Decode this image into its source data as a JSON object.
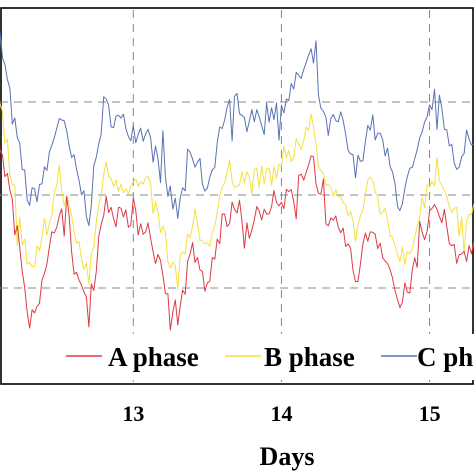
{
  "chart_data": {
    "type": "line",
    "title": "",
    "xlabel": "Days",
    "ylabel": "",
    "x_ticks": [
      13,
      14,
      15
    ],
    "xlim": [
      12.1,
      15.3
    ],
    "ylim": [
      0,
      100
    ],
    "grid": true,
    "grid_style": "dashed",
    "legend_placement": "bottom",
    "series": [
      {
        "name": "A phase",
        "color": "#dd3a45",
        "x": [
          12.02,
          12.1,
          12.2,
          12.3,
          12.4,
          12.5,
          12.6,
          12.7,
          12.8,
          12.9,
          13.0,
          13.1,
          13.2,
          13.3,
          13.4,
          13.5,
          13.6,
          13.7,
          13.8,
          13.9,
          14.0,
          14.1,
          14.2,
          14.3,
          14.4,
          14.5,
          14.6,
          14.7,
          14.8,
          14.9,
          15.0,
          15.1,
          15.2,
          15.3
        ],
        "y": [
          62,
          65,
          43,
          18,
          27,
          48,
          32,
          18,
          48,
          44,
          43,
          42,
          28,
          18,
          35,
          25,
          43,
          46,
          44,
          45,
          47,
          52,
          63,
          40,
          42,
          28,
          42,
          35,
          20,
          30,
          45,
          43,
          32,
          38
        ]
      },
      {
        "name": "B phase",
        "color": "#f5e03c",
        "x": [
          12.02,
          12.1,
          12.2,
          12.3,
          12.4,
          12.5,
          12.6,
          12.7,
          12.8,
          12.9,
          13.0,
          13.1,
          13.2,
          13.3,
          13.4,
          13.5,
          13.6,
          13.7,
          13.8,
          13.9,
          14.0,
          14.1,
          14.2,
          14.3,
          14.4,
          14.5,
          14.6,
          14.7,
          14.8,
          14.9,
          15.0,
          15.1,
          15.2,
          15.3
        ],
        "y": [
          72,
          76,
          50,
          30,
          38,
          56,
          40,
          28,
          57,
          54,
          53,
          52,
          40,
          28,
          45,
          35,
          52,
          56,
          54,
          55,
          57,
          62,
          72,
          50,
          53,
          40,
          52,
          45,
          32,
          40,
          55,
          53,
          42,
          48
        ]
      },
      {
        "name": "C phase",
        "color": "#5a72b5",
        "x": [
          12.02,
          12.1,
          12.2,
          12.3,
          12.4,
          12.5,
          12.6,
          12.7,
          12.8,
          12.9,
          13.0,
          13.1,
          13.2,
          13.3,
          13.4,
          13.5,
          13.6,
          13.7,
          13.8,
          13.9,
          14.0,
          14.1,
          14.2,
          14.3,
          14.4,
          14.5,
          14.6,
          14.7,
          14.8,
          14.9,
          15.0,
          15.1,
          15.2,
          15.3
        ],
        "y": [
          86,
          92,
          68,
          48,
          55,
          72,
          58,
          45,
          74,
          70,
          68,
          66,
          55,
          45,
          62,
          52,
          70,
          76,
          72,
          72,
          75,
          80,
          88,
          68,
          70,
          56,
          70,
          62,
          48,
          58,
          72,
          70,
          58,
          64
        ]
      }
    ]
  }
}
